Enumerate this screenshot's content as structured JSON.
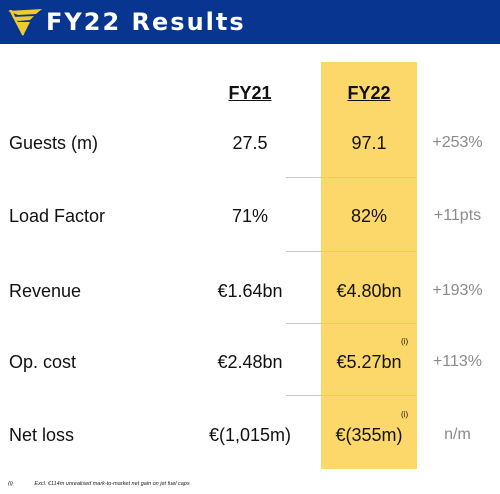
{
  "header": {
    "title": "FY22 Results",
    "logo_icon": "harp-logo-icon"
  },
  "colors": {
    "header_bg": "#073590",
    "highlight": "#fcd769",
    "logo": "#f1c933"
  },
  "columns": {
    "fy21": "FY21",
    "fy22": "FY22"
  },
  "rows": [
    {
      "label": "Guests (m)",
      "fy21": "27.5",
      "fy22": "97.1",
      "change": "+253%",
      "note": ""
    },
    {
      "label": "Load Factor",
      "fy21": "71%",
      "fy22": "82%",
      "change": "+11pts",
      "note": ""
    },
    {
      "label": "Revenue",
      "fy21": "€1.64bn",
      "fy22": "€4.80bn",
      "change": "+193%",
      "note": ""
    },
    {
      "label": "Op. cost",
      "fy21": "€2.48bn",
      "fy22": "€5.27bn",
      "change": "+113%",
      "note": "(i)"
    },
    {
      "label": "Net loss",
      "fy21": "€(1,015m)",
      "fy22": "€(355m)",
      "change": "n/m",
      "note": "(i)"
    }
  ],
  "footnote": {
    "marker": "(i)",
    "text": "Excl. €114m unrealised mark-to-market net gain on jet fuel caps"
  }
}
